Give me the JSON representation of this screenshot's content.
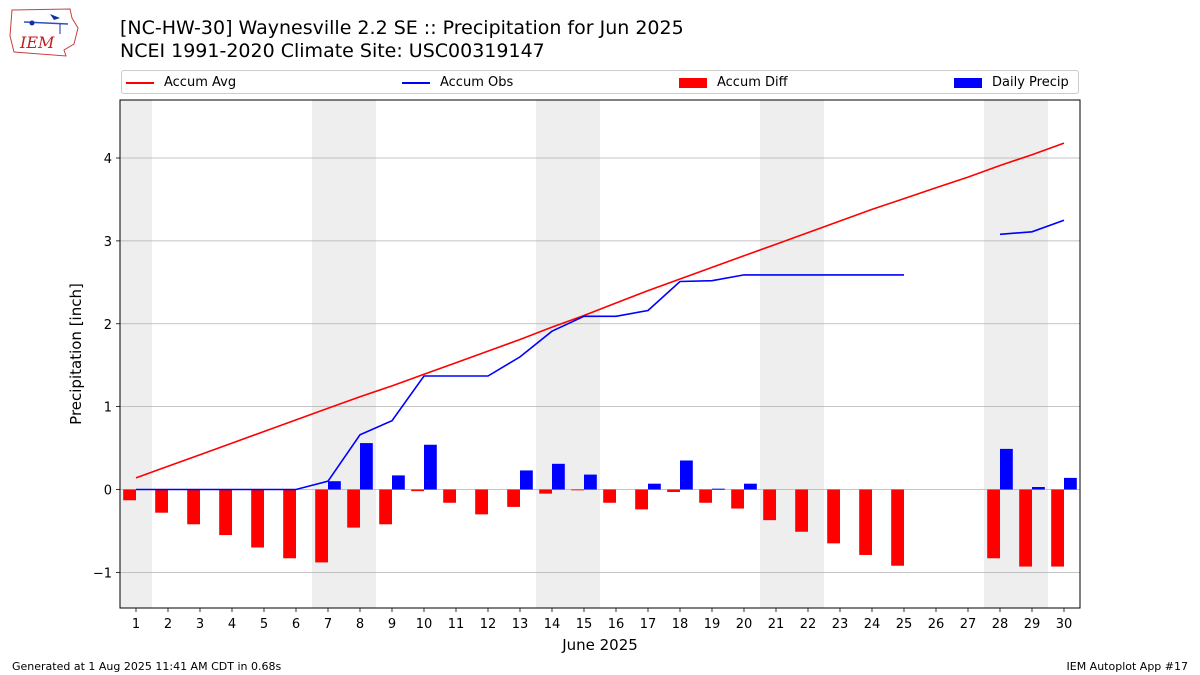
{
  "header": {
    "title_line1": "[NC-HW-30] Waynesville 2.2 SE :: Precipitation for Jun 2025",
    "title_line2": "NCEI 1991-2020 Climate Site: USC00319147",
    "logo_text": "IEM"
  },
  "legend": {
    "accum_avg": "Accum Avg",
    "accum_obs": "Accum Obs",
    "accum_diff": "Accum Diff",
    "daily_precip": "Daily Precip"
  },
  "footer": {
    "left": "Generated at 1 Aug 2025 11:41 AM CDT in 0.68s",
    "right": "IEM Autoplot App #17"
  },
  "colors": {
    "avg": "#ff0000",
    "obs": "#0000ff",
    "diff": "#ff0000",
    "daily": "#0000ff",
    "weekend_shade": "#eeeeee",
    "grid": "#b0b0b0"
  },
  "chart_data": {
    "type": "bar",
    "xlabel": "June 2025",
    "ylabel": "Precipitation [inch]",
    "xlim": [
      0.5,
      30.5
    ],
    "ylim": [
      -1.43,
      4.7
    ],
    "yticks": [
      -1,
      0,
      1,
      2,
      3,
      4
    ],
    "ytick_labels": [
      "−1",
      "0",
      "1",
      "2",
      "3",
      "4"
    ],
    "grid": true,
    "legend_position": "top",
    "days": [
      1,
      2,
      3,
      4,
      5,
      6,
      7,
      8,
      9,
      10,
      11,
      12,
      13,
      14,
      15,
      16,
      17,
      18,
      19,
      20,
      21,
      22,
      23,
      24,
      25,
      26,
      27,
      28,
      29,
      30
    ],
    "day_labels": [
      "1",
      "2",
      "3",
      "4",
      "5",
      "6",
      "7",
      "8",
      "9",
      "10",
      "11",
      "12",
      "13",
      "14",
      "15",
      "16",
      "17",
      "18",
      "19",
      "20",
      "21",
      "22",
      "23",
      "24",
      "25",
      "26",
      "27",
      "28",
      "29",
      "30"
    ],
    "shaded_days": [
      1,
      7,
      8,
      14,
      15,
      21,
      22,
      28,
      29
    ],
    "series": [
      {
        "name": "Accum Avg",
        "kind": "line",
        "values": [
          0.14,
          0.28,
          0.42,
          0.56,
          0.7,
          0.84,
          0.98,
          1.12,
          1.25,
          1.39,
          1.53,
          1.67,
          1.81,
          1.96,
          2.1,
          2.25,
          2.4,
          2.54,
          2.68,
          2.82,
          2.96,
          3.1,
          3.24,
          3.38,
          3.51,
          3.64,
          3.77,
          3.91,
          4.04,
          4.18
        ]
      },
      {
        "name": "Accum Obs",
        "kind": "line",
        "values": [
          0,
          0,
          0,
          0,
          0,
          0,
          0.1,
          0.66,
          0.83,
          1.37,
          1.37,
          1.37,
          1.6,
          1.91,
          2.09,
          2.09,
          2.16,
          2.51,
          2.52,
          2.59,
          2.59,
          2.59,
          2.59,
          2.59,
          2.59,
          null,
          null,
          3.08,
          3.11,
          3.25
        ]
      },
      {
        "name": "Accum Diff",
        "kind": "bar",
        "values": [
          -0.13,
          -0.28,
          -0.42,
          -0.55,
          -0.7,
          -0.83,
          -0.88,
          -0.46,
          -0.42,
          -0.02,
          -0.16,
          -0.3,
          -0.21,
          -0.05,
          -0.01,
          -0.16,
          -0.24,
          -0.03,
          -0.16,
          -0.23,
          -0.37,
          -0.51,
          -0.65,
          -0.79,
          -0.92,
          null,
          null,
          -0.83,
          -0.93,
          -0.93
        ]
      },
      {
        "name": "Daily Precip",
        "kind": "bar",
        "values": [
          0,
          0,
          0,
          0,
          0,
          0,
          0.1,
          0.56,
          0.17,
          0.54,
          0,
          0,
          0.23,
          0.31,
          0.18,
          0,
          0.07,
          0.35,
          0.01,
          0.07,
          0,
          0,
          0,
          0,
          0,
          null,
          null,
          0.49,
          0.03,
          0.14
        ]
      }
    ]
  }
}
